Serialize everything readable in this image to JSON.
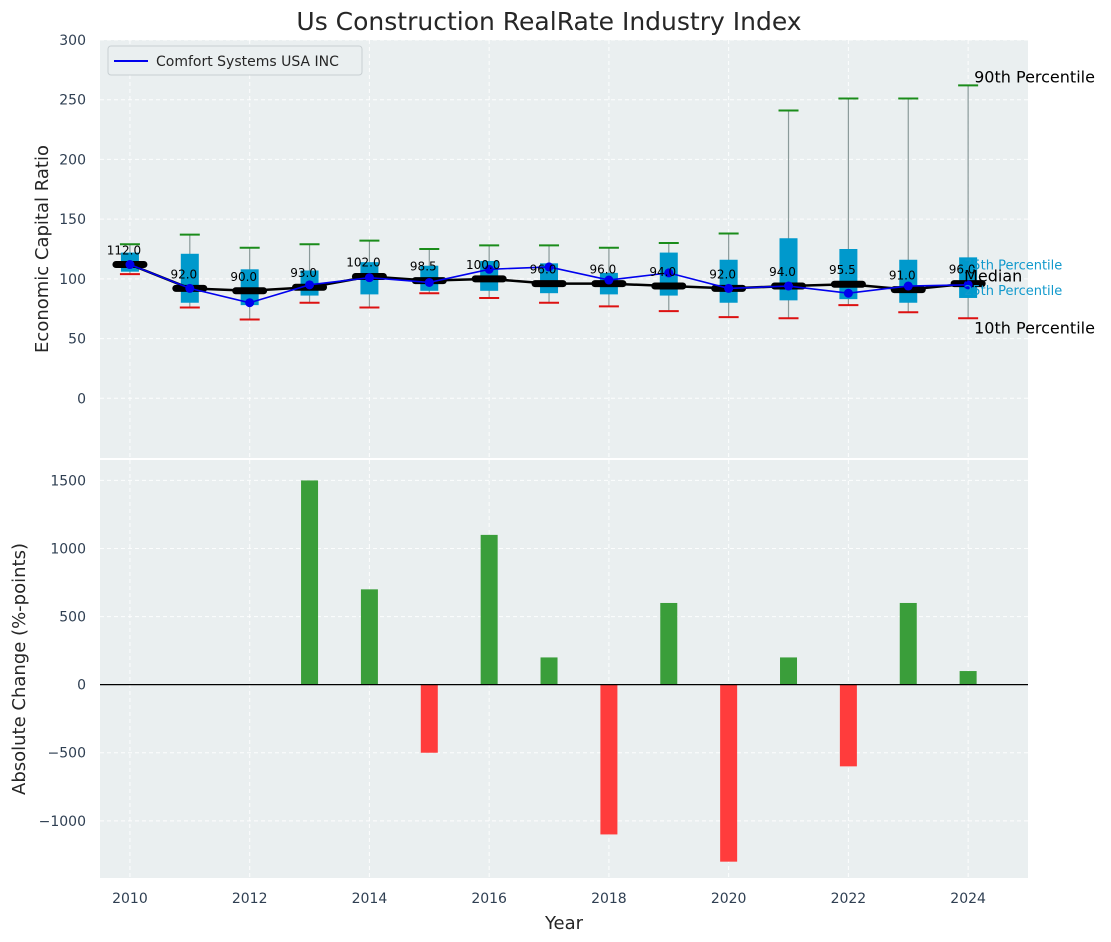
{
  "chart_data": [
    {
      "type": "box",
      "title": "Us Construction RealRate Industry Index",
      "xlabel": "",
      "ylabel": "Economic Capital Ratio",
      "ylim": [
        -50,
        300
      ],
      "yticks": [
        0,
        50,
        100,
        150,
        200,
        250,
        300
      ],
      "xlim": [
        2009.5,
        2025
      ],
      "x": [
        2010,
        2011,
        2012,
        2013,
        2014,
        2015,
        2016,
        2017,
        2018,
        2019,
        2020,
        2021,
        2022,
        2023,
        2024
      ],
      "p10": [
        104,
        76,
        66,
        80,
        76,
        88,
        84,
        80,
        77,
        73,
        68,
        67,
        78,
        72,
        67
      ],
      "q1": [
        106,
        80,
        78,
        86,
        87,
        90,
        90,
        88,
        87,
        86,
        80,
        82,
        83,
        80,
        84
      ],
      "median": [
        112,
        92,
        90,
        93,
        102,
        98.5,
        100,
        96,
        96,
        94,
        92,
        94,
        95.5,
        91,
        96
      ],
      "q3": [
        122,
        121,
        108,
        107,
        114,
        111,
        115,
        113,
        105,
        122,
        116,
        134,
        125,
        116,
        118
      ],
      "p90": [
        129,
        137,
        126,
        129,
        132,
        125,
        128,
        128,
        126,
        130,
        138,
        241,
        251,
        251,
        262
      ],
      "median_labels": [
        "112.0",
        "92.0",
        "90.0",
        "93.0",
        "102.0",
        "98.5",
        "100.0",
        "96.0",
        "96.0",
        "94.0",
        "92.0",
        "94.0",
        "95.5",
        "91.0",
        "96.0"
      ],
      "series": [
        {
          "name": "Comfort Systems USA INC",
          "color": "#0000ee",
          "values": [
            112,
            92,
            80,
            95,
            101,
            97,
            108,
            110,
            99,
            105,
            92,
            94,
            88,
            94,
            95
          ]
        }
      ],
      "annotations": [
        "90th Percentile",
        "75th Percentile",
        "Median",
        "25th Percentile",
        "10th Percentile"
      ],
      "legend": "top-left",
      "grid": true
    },
    {
      "type": "bar",
      "xlabel": "Year",
      "ylabel": "Absolute Change (%-points)",
      "ylim": [
        -1420,
        1650
      ],
      "yticks": [
        -1000,
        -500,
        0,
        500,
        1000,
        1500
      ],
      "x": [
        2013,
        2014,
        2015,
        2016,
        2017,
        2018,
        2019,
        2020,
        2021,
        2022,
        2023,
        2024
      ],
      "values": [
        1500,
        700,
        -500,
        1100,
        200,
        -1100,
        600,
        -1300,
        200,
        -600,
        600,
        100
      ],
      "positive_color": "#3a9e3a",
      "negative_color": "#ff3c3c",
      "grid": true
    }
  ],
  "ui": {
    "xticks": [
      2010,
      2012,
      2014,
      2016,
      2018,
      2020,
      2022,
      2024
    ],
    "colors": {
      "plot_bg": "#eaeff0",
      "box_fill": "#0099cc",
      "whisker": "#8a9a9a",
      "p90_cap": "#1a8c1a",
      "p10_cap": "#dd1111",
      "median_line": "#000000"
    }
  }
}
